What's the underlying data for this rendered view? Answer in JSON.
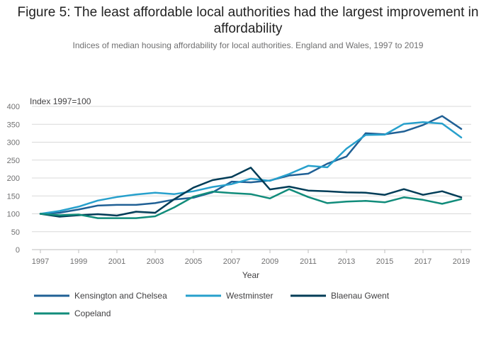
{
  "chart_data": {
    "type": "line",
    "title": "Figure 5: The least affordable local authorities had the largest improvement in affordability",
    "subtitle": "Indices of median housing affordability for local authorities. England and Wales, 1997 to 2019",
    "xlabel": "Year",
    "ylabel": "Index 1997=100",
    "xlim": [
      1997,
      2019
    ],
    "ylim": [
      0,
      400
    ],
    "x_ticks": [
      1997,
      1999,
      2001,
      2003,
      2005,
      2007,
      2009,
      2011,
      2013,
      2015,
      2017,
      2019
    ],
    "y_ticks": [
      0,
      50,
      100,
      150,
      200,
      250,
      300,
      350,
      400
    ],
    "grid": "horizontal",
    "legend_position": "bottom",
    "x": [
      1997,
      1998,
      1999,
      2000,
      2001,
      2002,
      2003,
      2004,
      2005,
      2006,
      2007,
      2008,
      2009,
      2010,
      2011,
      2012,
      2013,
      2014,
      2015,
      2016,
      2017,
      2018,
      2019
    ],
    "series": [
      {
        "name": "Kensington and Chelsea",
        "color": "#206095",
        "values": [
          100,
          103,
          112,
          123,
          125,
          125,
          130,
          140,
          145,
          160,
          190,
          188,
          193,
          207,
          212,
          240,
          260,
          325,
          322,
          330,
          348,
          373,
          337
        ]
      },
      {
        "name": "Westminster",
        "color": "#27a0cc",
        "values": [
          100,
          108,
          120,
          137,
          147,
          154,
          159,
          155,
          163,
          175,
          183,
          198,
          192,
          211,
          234,
          230,
          282,
          320,
          321,
          351,
          356,
          352,
          313
        ]
      },
      {
        "name": "Blaenau Gwent",
        "color": "#003c57",
        "values": [
          100,
          92,
          96,
          99,
          95,
          106,
          103,
          141,
          173,
          194,
          203,
          229,
          168,
          176,
          165,
          163,
          160,
          159,
          153,
          169,
          153,
          163,
          146
        ]
      },
      {
        "name": "Copeland",
        "color": "#118c7b",
        "values": [
          100,
          96,
          98,
          88,
          88,
          88,
          93,
          118,
          148,
          162,
          158,
          155,
          143,
          169,
          147,
          130,
          134,
          136,
          132,
          146,
          139,
          128,
          141
        ]
      }
    ]
  }
}
